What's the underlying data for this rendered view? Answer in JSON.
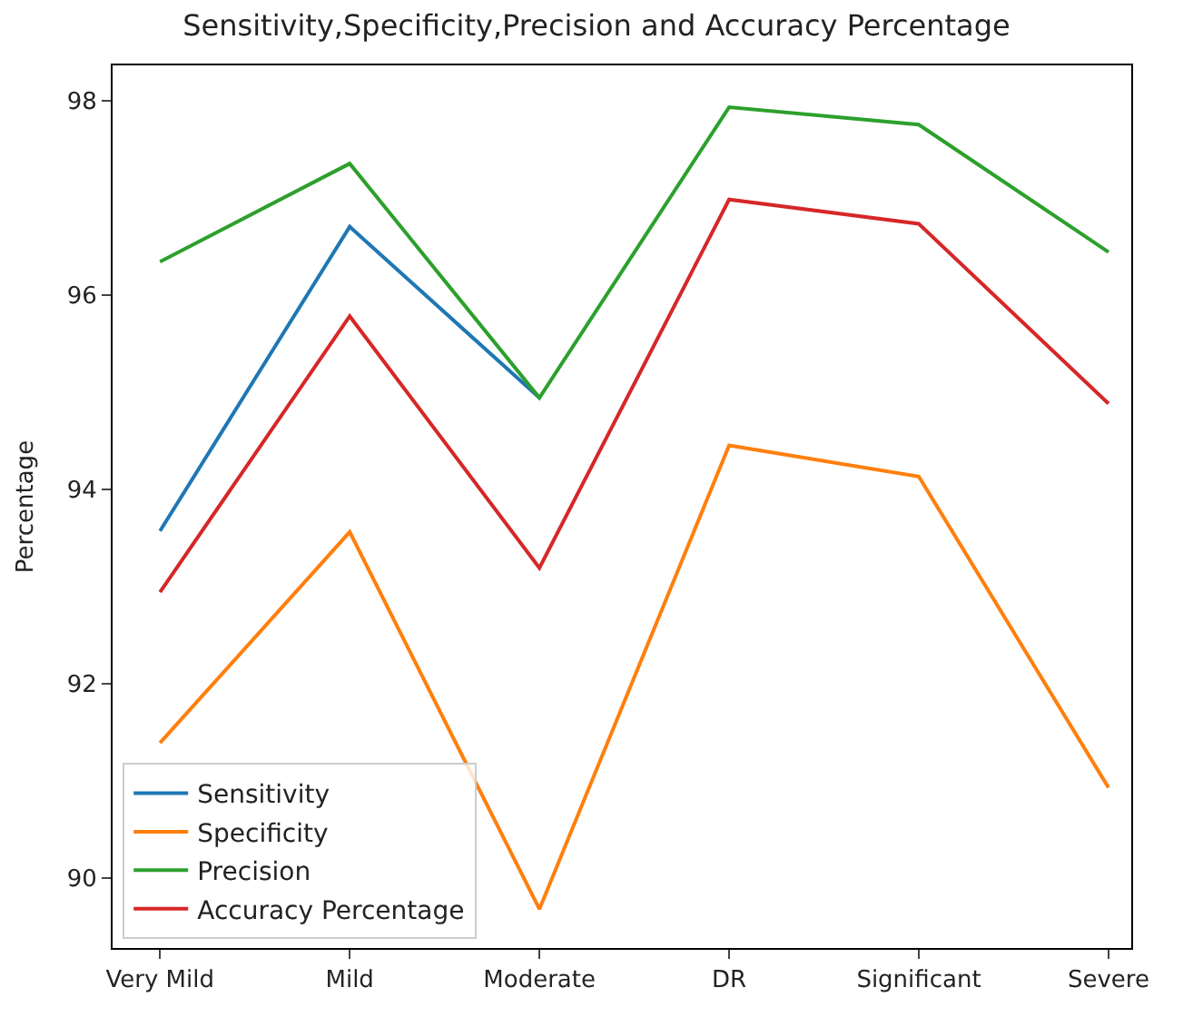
{
  "chart_data": {
    "type": "line",
    "title": "Sensitivity,Specificity,Precision and Accuracy Percentage",
    "ylabel": "Percentage",
    "categories": [
      "Very Mild",
      "Mild",
      "Moderate",
      "DR",
      "Significant",
      "Severe"
    ],
    "series": [
      {
        "name": "Sensitivity",
        "color": "#1f77b4",
        "values": [
          93.57,
          96.7,
          94.94,
          null,
          null,
          null
        ]
      },
      {
        "name": "Specificity",
        "color": "#ff7f0e",
        "values": [
          91.39,
          93.56,
          89.68,
          94.45,
          94.13,
          90.93
        ]
      },
      {
        "name": "Precision",
        "color": "#2ca02c",
        "values": [
          96.34,
          97.35,
          94.94,
          97.93,
          97.75,
          96.44
        ]
      },
      {
        "name": "Accuracy Percentage",
        "color": "#d62728",
        "values": [
          92.94,
          95.78,
          93.19,
          96.98,
          96.73,
          94.88
        ]
      }
    ],
    "ylim": [
      89.28,
      98.36
    ],
    "yticks": [
      90,
      92,
      94,
      96,
      98
    ],
    "legend": "bottom left",
    "marker": "none",
    "line_style": "solid"
  }
}
